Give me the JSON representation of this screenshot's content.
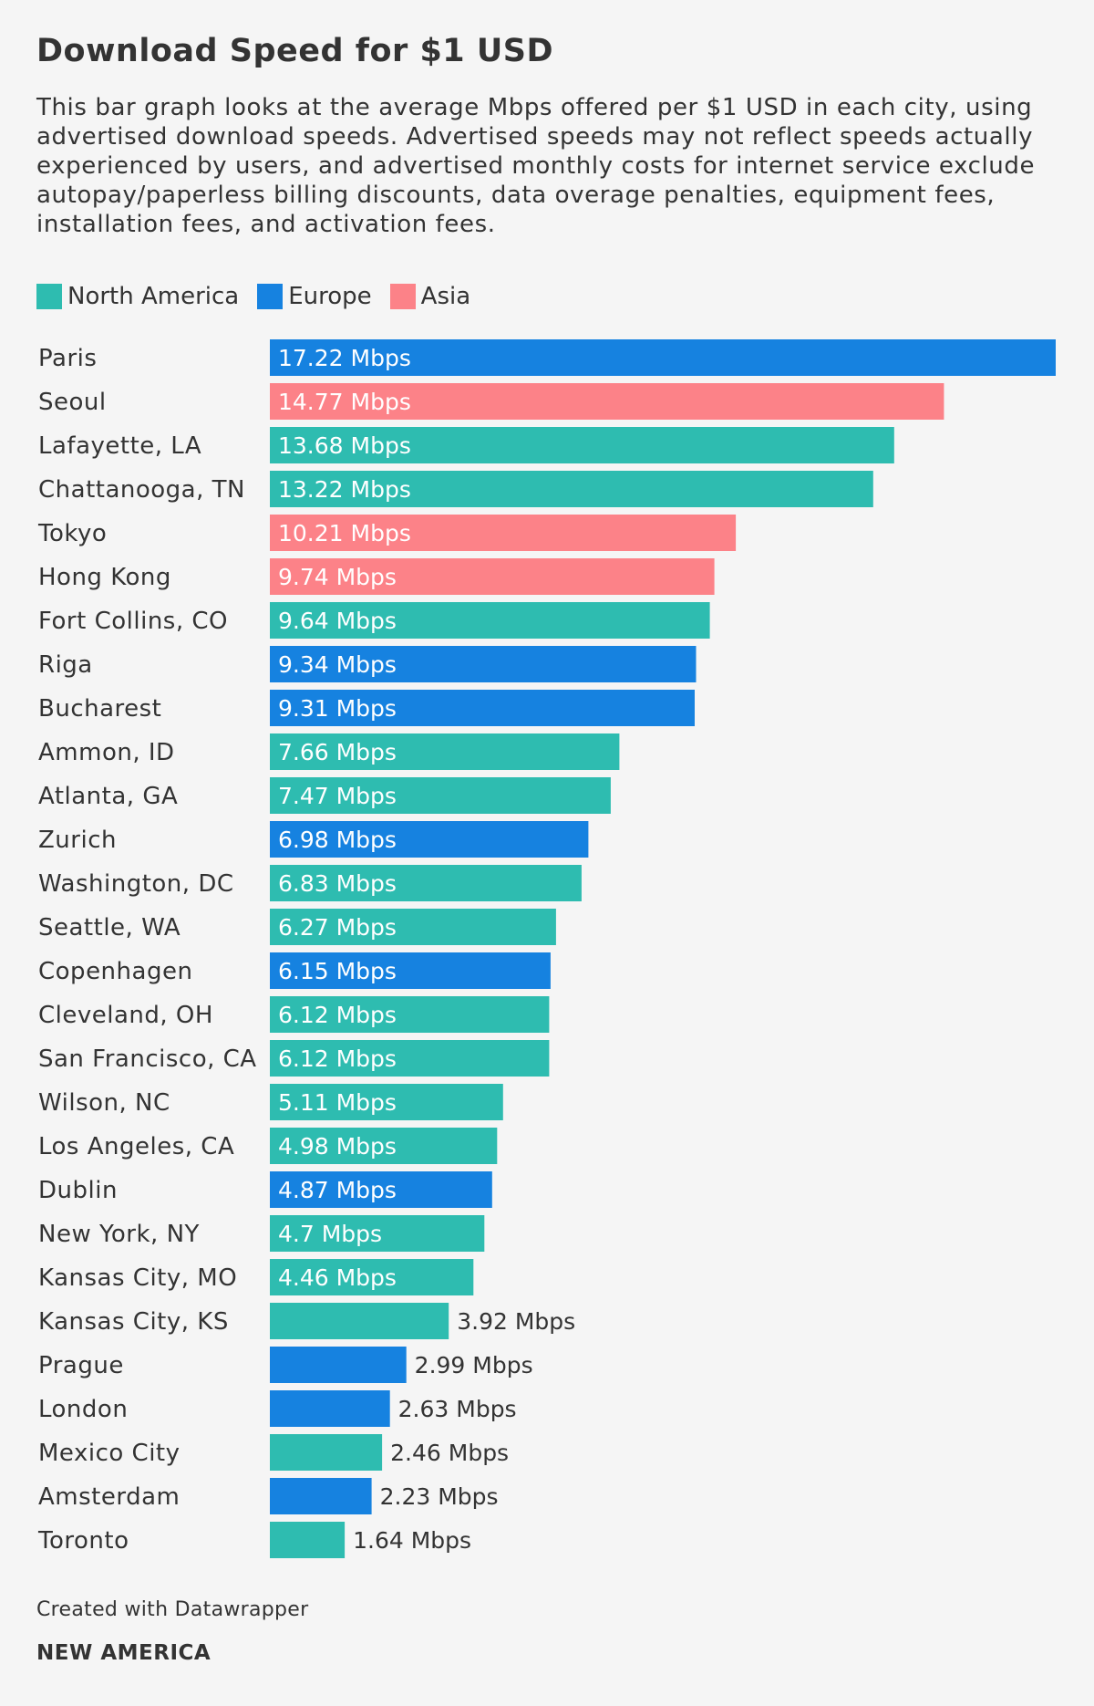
{
  "title": "Download Speed for $1 USD",
  "description": "This bar graph looks at the average Mbps offered per $1 USD in each city, using advertised download speeds. Advertised speeds may not reflect speeds actually experienced by users, and advertised monthly costs for internet service exclude autopay/paperless billing discounts, data overage penalties, equipment fees, installation fees, and activation fees.",
  "legend": [
    {
      "label": "North America",
      "color": "#2ebcb0"
    },
    {
      "label": "Europe",
      "color": "#1682e0"
    },
    {
      "label": "Asia",
      "color": "#fc8288"
    }
  ],
  "footer": {
    "created_with": "Created with Datawrapper",
    "brand": "NEW AMERICA"
  },
  "chart_data": {
    "type": "bar",
    "orientation": "horizontal",
    "title": "Download Speed for $1 USD",
    "unit": "Mbps",
    "categories": [
      "Paris",
      "Seoul",
      "Lafayette, LA",
      "Chattanooga, TN",
      "Tokyo",
      "Hong Kong",
      "Fort Collins, CO",
      "Riga",
      "Bucharest",
      "Ammon, ID",
      "Atlanta, GA",
      "Zurich",
      "Washington, DC",
      "Seattle, WA",
      "Copenhagen",
      "Cleveland, OH",
      "San Francisco, CA",
      "Wilson, NC",
      "Los Angeles, CA",
      "Dublin",
      "New York, NY",
      "Kansas City, MO",
      "Kansas City, KS",
      "Prague",
      "London",
      "Mexico City",
      "Amsterdam",
      "Toronto"
    ],
    "values": [
      17.22,
      14.77,
      13.68,
      13.22,
      10.21,
      9.74,
      9.64,
      9.34,
      9.31,
      7.66,
      7.47,
      6.98,
      6.83,
      6.27,
      6.15,
      6.12,
      6.12,
      5.11,
      4.98,
      4.87,
      4.7,
      4.46,
      3.92,
      2.99,
      2.63,
      2.46,
      2.23,
      1.64
    ],
    "labels": [
      "17.22 Mbps",
      "14.77 Mbps",
      "13.68 Mbps",
      "13.22 Mbps",
      "10.21 Mbps",
      "9.74 Mbps",
      "9.64 Mbps",
      "9.34 Mbps",
      "9.31 Mbps",
      "7.66 Mbps",
      "7.47 Mbps",
      "6.98 Mbps",
      "6.83 Mbps",
      "6.27 Mbps",
      "6.15 Mbps",
      "6.12 Mbps",
      "6.12 Mbps",
      "5.11 Mbps",
      "4.98 Mbps",
      "4.87 Mbps",
      "4.7 Mbps",
      "4.46 Mbps",
      "3.92 Mbps",
      "2.99 Mbps",
      "2.63 Mbps",
      "2.46 Mbps",
      "2.23 Mbps",
      "1.64 Mbps"
    ],
    "regions": [
      "Europe",
      "Asia",
      "North America",
      "North America",
      "Asia",
      "Asia",
      "North America",
      "Europe",
      "Europe",
      "North America",
      "North America",
      "Europe",
      "North America",
      "North America",
      "Europe",
      "North America",
      "North America",
      "North America",
      "North America",
      "Europe",
      "North America",
      "North America",
      "North America",
      "Europe",
      "Europe",
      "North America",
      "Europe",
      "North America"
    ],
    "xlim": [
      0,
      17.22
    ],
    "grid": false,
    "legend_position": "top-left"
  }
}
